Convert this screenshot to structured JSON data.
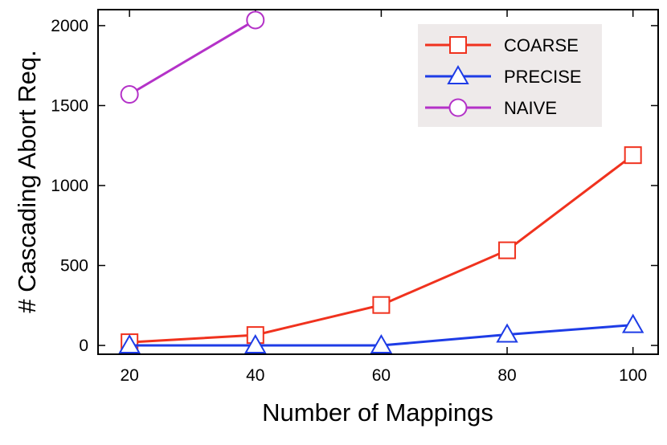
{
  "chart_data": {
    "type": "line",
    "title": "",
    "xlabel": "Number of Mappings",
    "ylabel": "# Cascading Abort Req.",
    "xlim": [
      15,
      104
    ],
    "ylim": [
      -55,
      2100
    ],
    "xticks": [
      20,
      40,
      60,
      80,
      100
    ],
    "yticks": [
      0,
      500,
      1000,
      1500,
      2000
    ],
    "grid": false,
    "legend_position": "top-right",
    "series": [
      {
        "name": "COARSE",
        "color": "#f0321e",
        "marker": "square",
        "x": [
          20,
          40,
          60,
          80,
          100
        ],
        "values": [
          20,
          65,
          253,
          595,
          1190
        ]
      },
      {
        "name": "PRECISE",
        "color": "#1e3ce6",
        "marker": "triangle",
        "x": [
          20,
          40,
          60,
          80,
          100
        ],
        "values": [
          0,
          0,
          0,
          68,
          128
        ]
      },
      {
        "name": "NAIVE",
        "color": "#b432c8",
        "marker": "circle",
        "x": [
          20,
          40
        ],
        "values": [
          1570,
          2035
        ]
      }
    ]
  }
}
